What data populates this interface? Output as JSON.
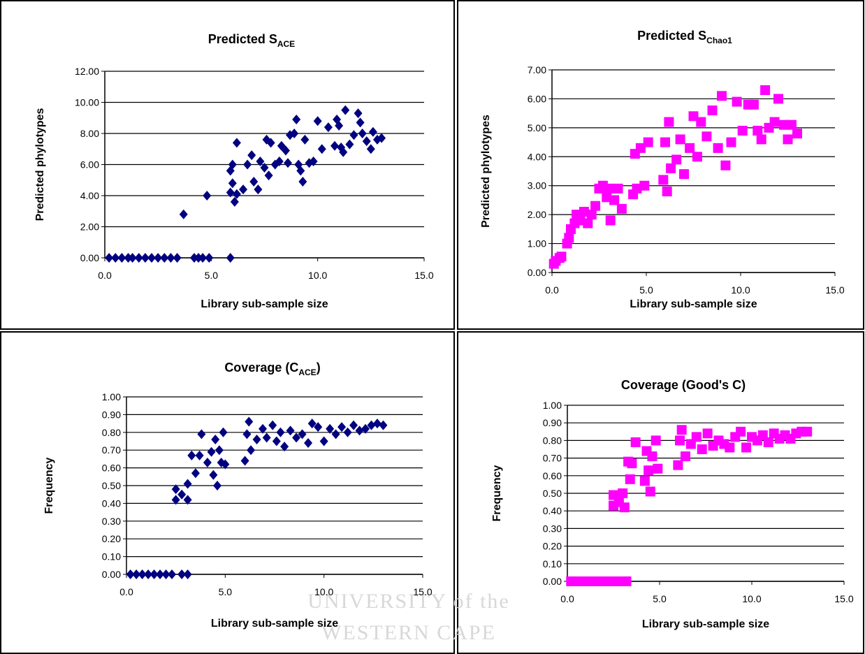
{
  "chart_data": [
    {
      "type": "scatter",
      "title": [
        "Predicted S",
        "ACE"
      ],
      "x_label": "Library sub-sample size",
      "y_label": "Predicted phylotypes",
      "color": "#000080",
      "marker": "diamond",
      "grid": true,
      "xlim": [
        0,
        15
      ],
      "ylim": [
        0,
        12
      ],
      "xticks": [
        {
          "value": 0,
          "label": "0.0"
        },
        {
          "value": 5,
          "label": "5.0"
        },
        {
          "value": 10,
          "label": "10.0"
        },
        {
          "value": 15,
          "label": "15.0"
        }
      ],
      "yticks": [
        {
          "value": 0,
          "label": "0.00"
        },
        {
          "value": 2,
          "label": "2.00"
        },
        {
          "value": 4,
          "label": "4.00"
        },
        {
          "value": 6,
          "label": "6.00"
        },
        {
          "value": 8,
          "label": "8.00"
        },
        {
          "value": 10,
          "label": "10.00"
        },
        {
          "value": 12,
          "label": "12.00"
        }
      ],
      "x": [
        0.2,
        0.5,
        0.8,
        1.1,
        1.3,
        1.6,
        1.9,
        2.2,
        2.5,
        2.8,
        3.1,
        3.4,
        4.2,
        4.4,
        4.6,
        4.9,
        5.9,
        3.7,
        4.8,
        5.9,
        5.9,
        6.0,
        6.0,
        6.1,
        6.2,
        6.2,
        6.5,
        6.7,
        6.9,
        7.0,
        7.2,
        7.3,
        7.5,
        7.6,
        7.7,
        7.8,
        8.0,
        8.2,
        8.3,
        8.5,
        8.6,
        8.7,
        8.9,
        9.0,
        9.1,
        9.2,
        9.3,
        9.4,
        9.6,
        9.8,
        10.0,
        10.2,
        10.5,
        10.8,
        10.9,
        11.0,
        11.1,
        11.2,
        11.3,
        11.5,
        11.7,
        11.9,
        12.0,
        12.1,
        12.3,
        12.5,
        12.6,
        12.8,
        13.0
      ],
      "values": [
        0,
        0,
        0,
        0,
        0,
        0,
        0,
        0,
        0,
        0,
        0,
        0,
        0,
        0,
        0,
        0,
        0,
        2.8,
        4.0,
        4.2,
        5.6,
        4.8,
        6.0,
        3.6,
        4.1,
        7.4,
        4.4,
        6.0,
        6.6,
        4.9,
        4.4,
        6.2,
        5.8,
        7.6,
        5.3,
        7.4,
        6.0,
        6.2,
        7.2,
        6.9,
        6.1,
        7.9,
        8.0,
        8.9,
        6.0,
        5.6,
        4.9,
        7.6,
        6.1,
        6.2,
        8.8,
        7.0,
        8.4,
        7.2,
        8.9,
        8.5,
        7.1,
        6.8,
        9.5,
        7.3,
        7.9,
        9.3,
        8.7,
        8.0,
        7.5,
        7.0,
        8.1,
        7.6,
        7.7
      ]
    },
    {
      "type": "scatter",
      "title": [
        "Predicted S",
        "Chao1"
      ],
      "x_label": "Library sub-sample size",
      "y_label": "Predicted phylotypes",
      "color": "#ff00ff",
      "marker": "square",
      "grid": true,
      "xlim": [
        0,
        15
      ],
      "ylim": [
        0,
        7
      ],
      "xticks": [
        {
          "value": 0,
          "label": "0.0"
        },
        {
          "value": 5,
          "label": "5.0"
        },
        {
          "value": 10,
          "label": "10.0"
        },
        {
          "value": 15,
          "label": "15.0"
        }
      ],
      "yticks": [
        {
          "value": 0,
          "label": "0.00"
        },
        {
          "value": 1,
          "label": "1.00"
        },
        {
          "value": 2,
          "label": "2.00"
        },
        {
          "value": 3,
          "label": "3.00"
        },
        {
          "value": 4,
          "label": "4.00"
        },
        {
          "value": 5,
          "label": "5.00"
        },
        {
          "value": 6,
          "label": "6.00"
        },
        {
          "value": 7,
          "label": "7.00"
        }
      ],
      "x": [
        0.1,
        0.2,
        0.4,
        0.5,
        0.8,
        0.9,
        1.0,
        1.2,
        1.3,
        1.5,
        1.7,
        1.9,
        2.1,
        2.3,
        2.5,
        2.7,
        2.9,
        3.0,
        3.1,
        3.3,
        3.5,
        3.7,
        4.3,
        4.4,
        4.5,
        4.7,
        4.9,
        5.1,
        5.9,
        6.0,
        6.1,
        6.2,
        6.3,
        6.6,
        6.8,
        7.0,
        7.3,
        7.5,
        7.7,
        7.9,
        8.2,
        8.5,
        8.8,
        9.0,
        9.2,
        9.5,
        9.8,
        10.1,
        10.4,
        10.7,
        10.9,
        11.1,
        11.3,
        11.5,
        11.8,
        12.0,
        12.3,
        12.5,
        12.7,
        13.0
      ],
      "values": [
        0.3,
        0.4,
        0.5,
        0.55,
        1.0,
        1.2,
        1.5,
        1.7,
        2.0,
        1.8,
        2.1,
        1.7,
        2.0,
        2.3,
        2.9,
        3.0,
        2.6,
        2.9,
        1.8,
        2.5,
        2.9,
        2.2,
        2.7,
        4.1,
        2.9,
        4.3,
        3.0,
        4.5,
        3.2,
        4.5,
        2.8,
        5.2,
        3.6,
        3.9,
        4.6,
        3.4,
        4.3,
        5.4,
        4.0,
        5.2,
        4.7,
        5.6,
        4.3,
        6.1,
        3.7,
        4.5,
        5.9,
        4.9,
        5.8,
        5.8,
        4.9,
        4.6,
        6.3,
        5.0,
        5.2,
        6.0,
        5.1,
        4.6,
        5.1,
        4.8
      ]
    },
    {
      "type": "scatter",
      "title": [
        "Coverage (C",
        "ACE",
        ")"
      ],
      "x_label": "Library  sub-sample size",
      "y_label": "Frequency",
      "color": "#000080",
      "marker": "diamond",
      "grid": true,
      "xlim": [
        0,
        15
      ],
      "ylim": [
        0,
        1
      ],
      "xticks": [
        {
          "value": 0,
          "label": "0.0"
        },
        {
          "value": 5,
          "label": "5.0"
        },
        {
          "value": 10,
          "label": "10.0"
        },
        {
          "value": 15,
          "label": "15.0"
        }
      ],
      "yticks": [
        {
          "value": 0,
          "label": "0.00"
        },
        {
          "value": 0.1,
          "label": "0.10"
        },
        {
          "value": 0.2,
          "label": "0.20"
        },
        {
          "value": 0.3,
          "label": "0.30"
        },
        {
          "value": 0.4,
          "label": "0.40"
        },
        {
          "value": 0.5,
          "label": "0.50"
        },
        {
          "value": 0.6,
          "label": "0.60"
        },
        {
          "value": 0.7,
          "label": "0.70"
        },
        {
          "value": 0.8,
          "label": "0.80"
        },
        {
          "value": 0.9,
          "label": "0.90"
        },
        {
          "value": 1,
          "label": "1.00"
        }
      ],
      "x": [
        0.2,
        0.5,
        0.8,
        1.1,
        1.4,
        1.7,
        2.0,
        2.3,
        2.8,
        3.1,
        2.5,
        2.5,
        2.8,
        3.1,
        3.1,
        3.3,
        3.5,
        3.7,
        3.8,
        4.1,
        4.3,
        4.4,
        4.5,
        4.6,
        4.7,
        4.8,
        4.9,
        5.0,
        6.0,
        6.1,
        6.2,
        6.3,
        6.6,
        6.9,
        7.1,
        7.4,
        7.6,
        7.8,
        8.0,
        8.3,
        8.6,
        8.9,
        9.2,
        9.4,
        9.7,
        10.0,
        10.3,
        10.6,
        10.9,
        11.2,
        11.5,
        11.8,
        12.1,
        12.4,
        12.7,
        13.0
      ],
      "values": [
        0,
        0,
        0,
        0,
        0,
        0,
        0,
        0,
        0,
        0,
        0.48,
        0.42,
        0.45,
        0.51,
        0.42,
        0.67,
        0.57,
        0.67,
        0.79,
        0.63,
        0.69,
        0.56,
        0.76,
        0.5,
        0.7,
        0.63,
        0.8,
        0.62,
        0.64,
        0.79,
        0.86,
        0.7,
        0.76,
        0.82,
        0.77,
        0.84,
        0.75,
        0.8,
        0.72,
        0.81,
        0.77,
        0.79,
        0.74,
        0.85,
        0.83,
        0.75,
        0.82,
        0.79,
        0.83,
        0.8,
        0.84,
        0.81,
        0.82,
        0.84,
        0.85,
        0.84
      ]
    },
    {
      "type": "scatter",
      "title": [
        "Coverage (Good's C)"
      ],
      "x_label": "Library sub-sample size",
      "y_label": "Frequency",
      "color": "#ff00ff",
      "marker": "square",
      "grid": true,
      "xlim": [
        0,
        15
      ],
      "ylim": [
        0,
        1
      ],
      "xticks": [
        {
          "value": 0,
          "label": "0.0"
        },
        {
          "value": 5,
          "label": "5.0"
        },
        {
          "value": 10,
          "label": "10.0"
        },
        {
          "value": 15,
          "label": "15.0"
        }
      ],
      "yticks": [
        {
          "value": 0,
          "label": "0.00"
        },
        {
          "value": 0.1,
          "label": "0.10"
        },
        {
          "value": 0.2,
          "label": "0.20"
        },
        {
          "value": 0.3,
          "label": "0.30"
        },
        {
          "value": 0.4,
          "label": "0.40"
        },
        {
          "value": 0.5,
          "label": "0.50"
        },
        {
          "value": 0.6,
          "label": "0.60"
        },
        {
          "value": 0.7,
          "label": "0.70"
        },
        {
          "value": 0.8,
          "label": "0.80"
        },
        {
          "value": 0.9,
          "label": "0.90"
        },
        {
          "value": 1,
          "label": "1.00"
        }
      ],
      "x": [
        0.2,
        0.5,
        0.8,
        1.1,
        1.4,
        1.7,
        2.0,
        2.3,
        2.6,
        2.9,
        3.2,
        2.5,
        2.5,
        2.8,
        3.0,
        3.1,
        3.3,
        3.4,
        3.5,
        3.7,
        4.2,
        4.3,
        4.4,
        4.5,
        4.6,
        4.8,
        4.9,
        6.0,
        6.1,
        6.2,
        6.4,
        6.7,
        7.0,
        7.3,
        7.6,
        7.9,
        8.2,
        8.5,
        8.8,
        9.1,
        9.4,
        9.7,
        10.0,
        10.3,
        10.6,
        10.9,
        11.2,
        11.5,
        11.8,
        12.1,
        12.4,
        12.7,
        13.0
      ],
      "values": [
        0,
        0,
        0,
        0,
        0,
        0,
        0,
        0,
        0,
        0,
        0,
        0.49,
        0.43,
        0.45,
        0.5,
        0.42,
        0.68,
        0.58,
        0.67,
        0.79,
        0.57,
        0.74,
        0.63,
        0.51,
        0.71,
        0.8,
        0.64,
        0.66,
        0.8,
        0.86,
        0.71,
        0.78,
        0.82,
        0.75,
        0.84,
        0.77,
        0.8,
        0.78,
        0.76,
        0.82,
        0.85,
        0.76,
        0.82,
        0.8,
        0.83,
        0.79,
        0.84,
        0.81,
        0.83,
        0.81,
        0.84,
        0.85,
        0.85
      ]
    }
  ],
  "watermark": [
    "UNIVERSITY of the",
    "WESTERN CAPE"
  ]
}
